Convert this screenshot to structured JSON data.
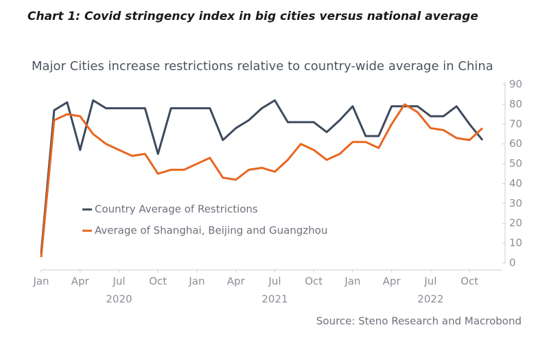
{
  "header": "Chart 1: Covid stringency index in big cities versus national average",
  "chart_data": {
    "type": "line",
    "title": "Major Cities increase restrictions relative to country-wide average in China",
    "source": "Source: Steno Research and Macrobond",
    "x": [
      "2020-01",
      "2020-02",
      "2020-03",
      "2020-04",
      "2020-05",
      "2020-06",
      "2020-07",
      "2020-08",
      "2020-09",
      "2020-10",
      "2020-11",
      "2020-12",
      "2021-01",
      "2021-02",
      "2021-03",
      "2021-04",
      "2021-05",
      "2021-06",
      "2021-07",
      "2021-08",
      "2021-09",
      "2021-10",
      "2021-11",
      "2021-12",
      "2022-01",
      "2022-02",
      "2022-03",
      "2022-04",
      "2022-05",
      "2022-06",
      "2022-07",
      "2022-08",
      "2022-09",
      "2022-10",
      "2022-11"
    ],
    "series": [
      {
        "name": "Country Average of Restrictions",
        "color": "#3d4a5c",
        "values": [
          5,
          77,
          81,
          57,
          82,
          78,
          78,
          78,
          78,
          55,
          78,
          78,
          78,
          78,
          62,
          68,
          72,
          78,
          82,
          71,
          71,
          71,
          66,
          72,
          79,
          64,
          64,
          79,
          79,
          79,
          74,
          74,
          79,
          70,
          62
        ]
      },
      {
        "name": "Average of Shanghai, Beijing and Guangzhou",
        "color": "#e8661e",
        "values": [
          3,
          72,
          75,
          74,
          65,
          60,
          57,
          54,
          55,
          45,
          47,
          47,
          50,
          53,
          43,
          42,
          47,
          48,
          46,
          52,
          60,
          57,
          52,
          55,
          61,
          61,
          58,
          70,
          80,
          76,
          68,
          67,
          63,
          62,
          68
        ]
      }
    ],
    "xlim": [
      "2020-01",
      "2022-12"
    ],
    "xticks": [
      {
        "value": "2020-01",
        "label": "Jan"
      },
      {
        "value": "2020-04",
        "label": "Apr"
      },
      {
        "value": "2020-07",
        "label": "Jul"
      },
      {
        "value": "2020-10",
        "label": "Oct"
      },
      {
        "value": "2021-01",
        "label": "Jan"
      },
      {
        "value": "2021-04",
        "label": "Apr"
      },
      {
        "value": "2021-07",
        "label": "Jul"
      },
      {
        "value": "2021-10",
        "label": "Oct"
      },
      {
        "value": "2022-01",
        "label": "Jan"
      },
      {
        "value": "2022-04",
        "label": "Apr"
      },
      {
        "value": "2022-07",
        "label": "Jul"
      },
      {
        "value": "2022-10",
        "label": "Oct"
      }
    ],
    "year_labels": [
      {
        "value": "2020-07",
        "label": "2020"
      },
      {
        "value": "2021-07",
        "label": "2021"
      },
      {
        "value": "2022-07",
        "label": "2022"
      }
    ],
    "ylim": [
      0,
      90
    ],
    "yticks": [
      0,
      10,
      20,
      30,
      40,
      50,
      60,
      70,
      80,
      90
    ],
    "legend": "lower left"
  }
}
